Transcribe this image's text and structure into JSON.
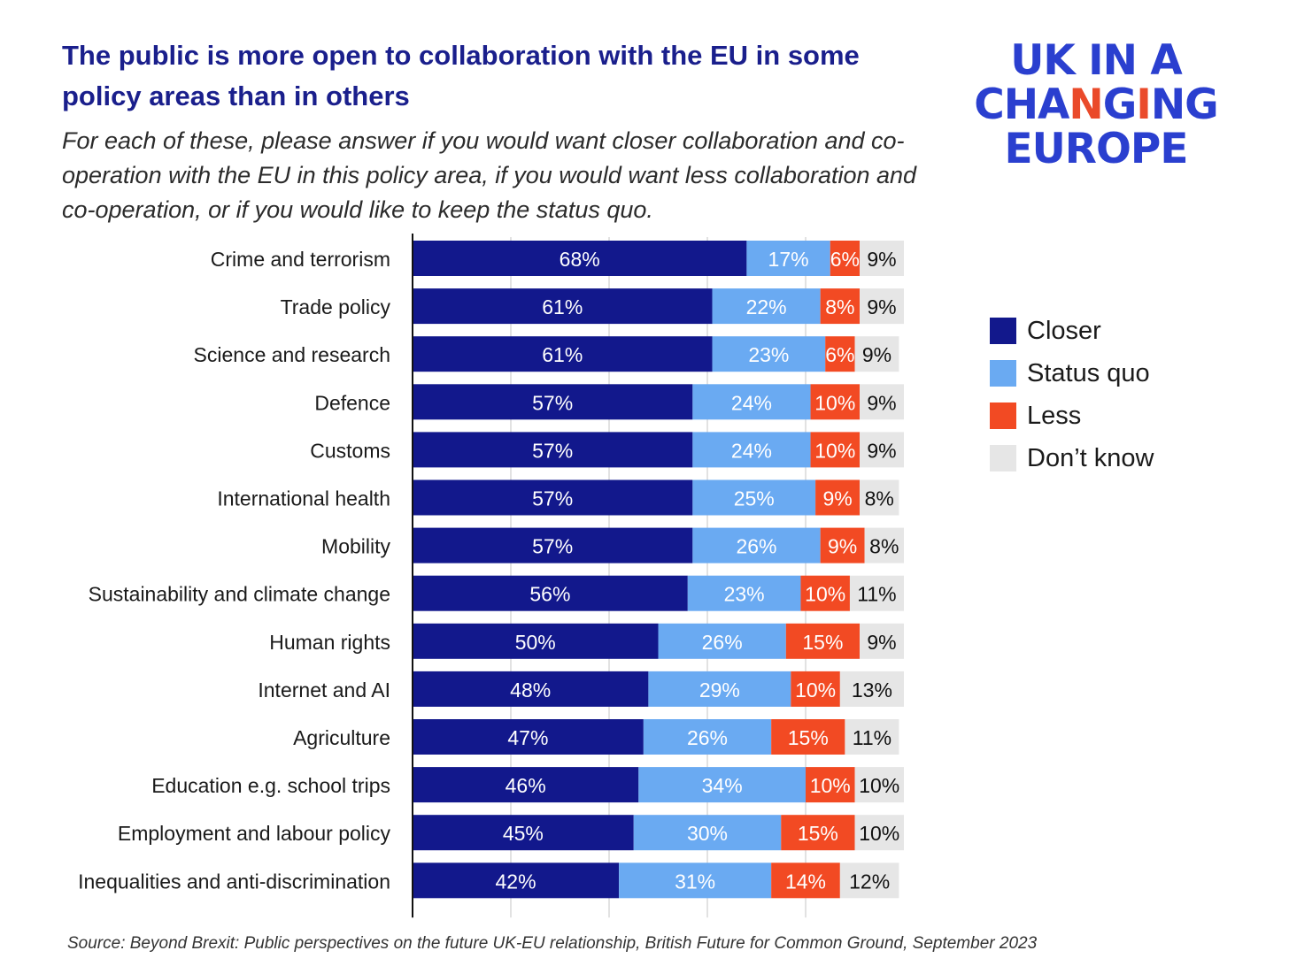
{
  "header": {
    "title": "The public is more open to collaboration with the EU in some policy areas than in others",
    "subtitle": "For each of these, please answer if you would want closer collaboration and co-operation with the EU in this policy area, if you would want less collaboration and co-operation, or if you would like to keep the status quo."
  },
  "logo": {
    "line1": "UK IN A",
    "line2_part1": "CHA",
    "line2_accent": "N",
    "line2_part2": "G",
    "line2_accent2": "I",
    "line2_part3": "NG",
    "line3": "EUROPE"
  },
  "chart_data": {
    "type": "bar",
    "orientation": "horizontal",
    "stacked": true,
    "categories": [
      "Crime and terrorism",
      "Trade policy",
      "Science and research",
      "Defence",
      "Customs",
      "International health",
      "Mobility",
      "Sustainability and climate change",
      "Human rights",
      "Internet and AI",
      "Agriculture",
      "Education e.g. school trips",
      "Employment and labour policy",
      "Inequalities and anti-discrimination"
    ],
    "series": [
      {
        "name": "Closer",
        "color": "#12188c",
        "values": [
          68,
          61,
          61,
          57,
          57,
          57,
          57,
          56,
          50,
          48,
          47,
          46,
          45,
          42
        ]
      },
      {
        "name": "Status quo",
        "color": "#6aaaf2",
        "values": [
          17,
          22,
          23,
          24,
          24,
          25,
          26,
          23,
          26,
          29,
          26,
          34,
          30,
          31
        ]
      },
      {
        "name": "Less",
        "color": "#f24a23",
        "values": [
          6,
          8,
          6,
          10,
          10,
          9,
          9,
          10,
          15,
          10,
          15,
          10,
          15,
          14
        ]
      },
      {
        "name": "Don’t know",
        "color": "#e6e6e6",
        "values": [
          9,
          9,
          9,
          9,
          9,
          8,
          8,
          11,
          9,
          13,
          11,
          10,
          10,
          12
        ]
      }
    ],
    "value_suffix": "%",
    "xlim": [
      0,
      100
    ],
    "grid": true,
    "legend_position": "right"
  },
  "source": "Source: Beyond Brexit: Public perspectives on the future UK-EU relationship, British Future for Common Ground, September 2023"
}
